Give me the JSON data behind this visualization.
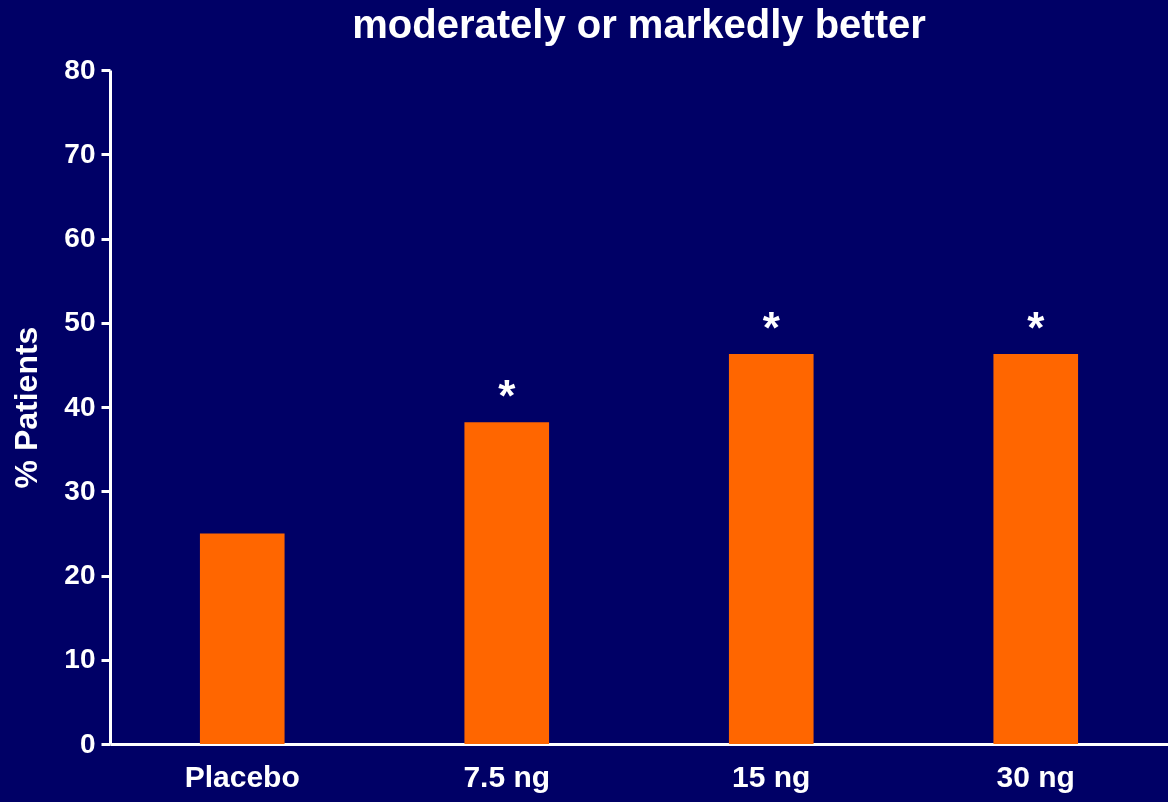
{
  "chart_data": {
    "type": "bar",
    "title": "moderately or markedly better",
    "ylabel": "% Patients",
    "categories": [
      "Placebo",
      "7.5 ng",
      "15 ng",
      "30 ng"
    ],
    "values": [
      25,
      38.2,
      46.3,
      46.3
    ],
    "color": "#ff6600",
    "ylim": [
      0,
      80
    ],
    "yticks": [
      0,
      10,
      20,
      30,
      40,
      50,
      60,
      70,
      80
    ],
    "grid": false,
    "annotations": [
      {
        "text": "*",
        "x": "7.5 ng",
        "y": 38.2
      },
      {
        "text": "*",
        "x": "15 ng",
        "y": 46.3
      },
      {
        "text": "*",
        "x": "30 ng",
        "y": 46.3
      }
    ]
  }
}
